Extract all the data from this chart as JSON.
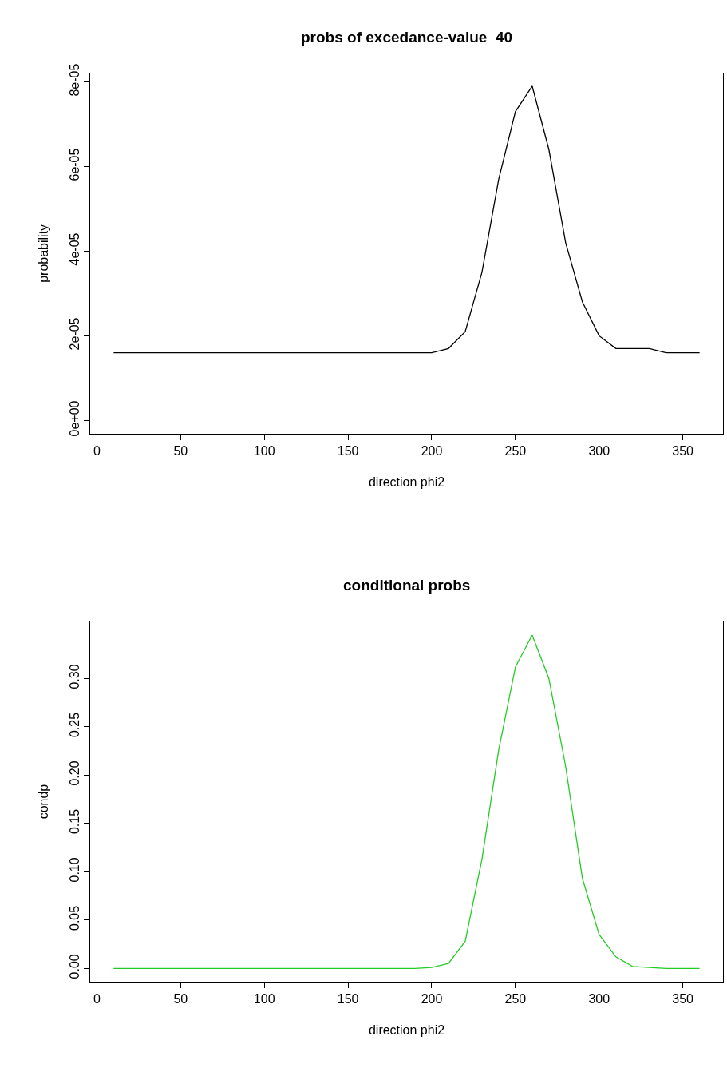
{
  "chart_data": [
    {
      "type": "line",
      "title": "probs of excedance-value  40",
      "xlabel": "direction phi2",
      "ylabel": "probability",
      "x": [
        10,
        20,
        30,
        40,
        50,
        60,
        70,
        80,
        90,
        100,
        110,
        120,
        130,
        140,
        150,
        160,
        170,
        180,
        190,
        200,
        210,
        220,
        230,
        240,
        250,
        260,
        270,
        280,
        290,
        300,
        310,
        320,
        330,
        340,
        350,
        360
      ],
      "series": [
        {
          "color": "#000000",
          "values": [
            1.6e-05,
            1.6e-05,
            1.6e-05,
            1.6e-05,
            1.6e-05,
            1.6e-05,
            1.6e-05,
            1.6e-05,
            1.6e-05,
            1.6e-05,
            1.6e-05,
            1.6e-05,
            1.6e-05,
            1.6e-05,
            1.6e-05,
            1.6e-05,
            1.6e-05,
            1.6e-05,
            1.6e-05,
            1.6e-05,
            1.7e-05,
            2.1e-05,
            3.5e-05,
            5.7e-05,
            7.3e-05,
            7.9e-05,
            6.4e-05,
            4.2e-05,
            2.8e-05,
            2e-05,
            1.7e-05,
            1.7e-05,
            1.7e-05,
            1.6e-05,
            1.6e-05,
            1.6e-05
          ]
        }
      ],
      "xlim": [
        -4,
        374
      ],
      "xticks": [
        0,
        50,
        100,
        150,
        200,
        250,
        300,
        350
      ],
      "ylim": [
        -3.1e-06,
        8.2e-05
      ],
      "yticks": [
        {
          "value": 0,
          "label": "0e+00"
        },
        {
          "value": 2e-05,
          "label": "2e-05"
        },
        {
          "value": 4e-05,
          "label": "4e-05"
        },
        {
          "value": 6e-05,
          "label": "6e-05"
        },
        {
          "value": 8e-05,
          "label": "8e-05"
        }
      ],
      "legend": false
    },
    {
      "type": "line",
      "title": "conditional probs",
      "xlabel": "direction phi2",
      "ylabel": "condp",
      "x": [
        10,
        20,
        30,
        40,
        50,
        60,
        70,
        80,
        90,
        100,
        110,
        120,
        130,
        140,
        150,
        160,
        170,
        180,
        190,
        200,
        210,
        220,
        230,
        240,
        250,
        260,
        270,
        280,
        290,
        300,
        310,
        320,
        330,
        340,
        350,
        360
      ],
      "series": [
        {
          "color": "#22cc22",
          "values": [
            0,
            0,
            0,
            0,
            0,
            0,
            0,
            0,
            0,
            0,
            0,
            0,
            0,
            0,
            0,
            0,
            0,
            0,
            0,
            0.001,
            0.005,
            0.028,
            0.113,
            0.226,
            0.312,
            0.345,
            0.3,
            0.209,
            0.093,
            0.035,
            0.012,
            0.002,
            0.001,
            0,
            0,
            0
          ]
        }
      ],
      "xlim": [
        -4,
        374
      ],
      "xticks": [
        0,
        50,
        100,
        150,
        200,
        250,
        300,
        350
      ],
      "ylim": [
        -0.0138,
        0.359
      ],
      "yticks": [
        {
          "value": 0,
          "label": "0.00"
        },
        {
          "value": 0.05,
          "label": "0.05"
        },
        {
          "value": 0.1,
          "label": "0.10"
        },
        {
          "value": 0.15,
          "label": "0.15"
        },
        {
          "value": 0.2,
          "label": "0.20"
        },
        {
          "value": 0.25,
          "label": "0.25"
        },
        {
          "value": 0.3,
          "label": "0.30"
        }
      ],
      "legend": false
    }
  ]
}
